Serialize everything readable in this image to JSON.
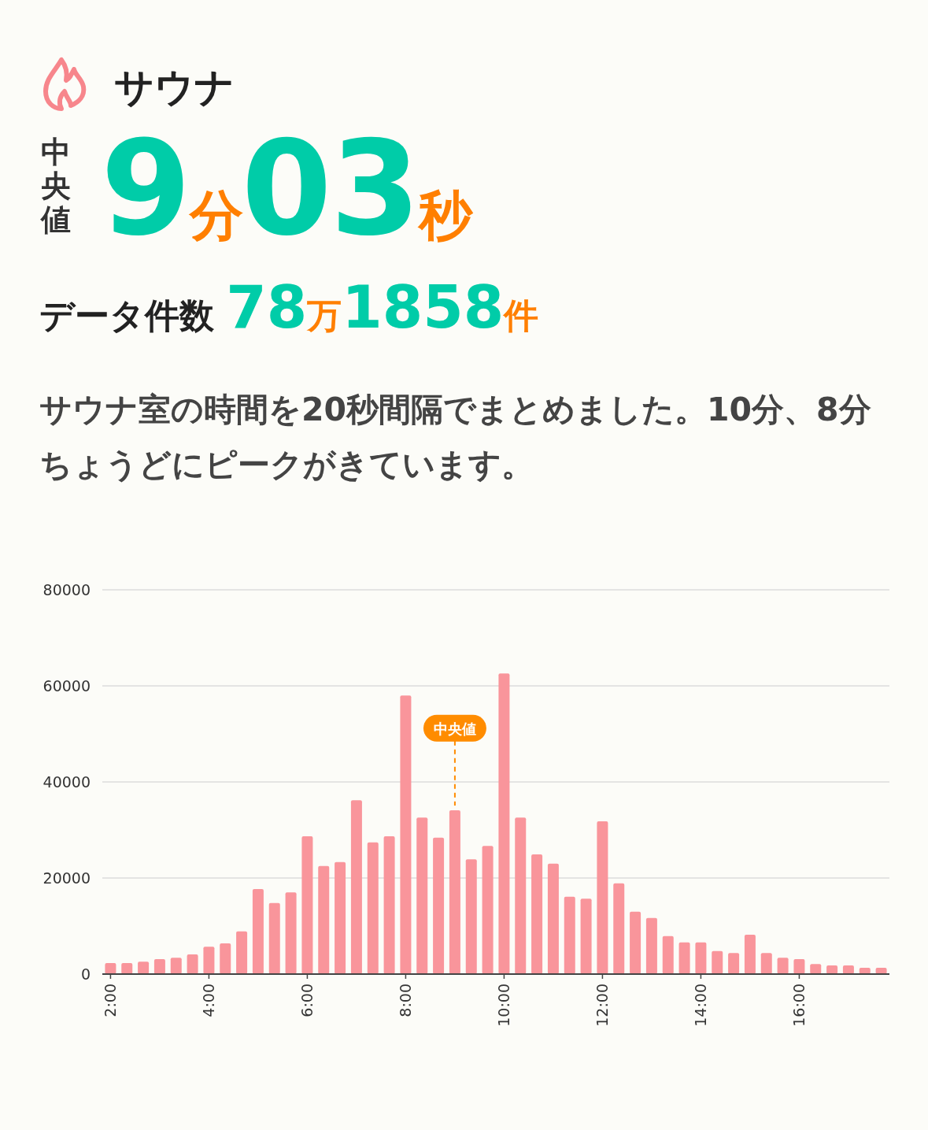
{
  "chart_data": {
    "type": "bar",
    "title": "サウナ",
    "annotations": [
      "中央値",
      "9分03秒",
      "データ件数 78万1858件",
      "サウナ室の時間を20秒間隔でまとめました。10分、8分ちょうどにピークがきています。",
      "中央値"
    ],
    "categories": [
      "2:00",
      null,
      null,
      null,
      null,
      null,
      "4:00",
      null,
      null,
      null,
      null,
      null,
      "6:00",
      null,
      null,
      null,
      null,
      null,
      "8:00",
      null,
      null,
      null,
      null,
      null,
      "10:00",
      null,
      null,
      null,
      null,
      null,
      "12:00",
      null,
      null,
      null,
      null,
      null,
      "14:00",
      null,
      null,
      null,
      null,
      null,
      "16:00",
      null,
      null,
      null,
      null,
      null
    ],
    "values": [
      2300,
      2300,
      2600,
      3100,
      3400,
      4100,
      5700,
      6400,
      8900,
      17700,
      14800,
      17000,
      28700,
      22500,
      23300,
      36200,
      27400,
      28700,
      58000,
      32600,
      28400,
      34100,
      23900,
      26700,
      62600,
      32600,
      24900,
      23000,
      16100,
      15700,
      31800,
      18900,
      13000,
      11700,
      7900,
      6600,
      6600,
      4800,
      4400,
      8200,
      4400,
      3400,
      3100,
      2100,
      1800,
      1800,
      1300,
      1300
    ],
    "color": "#f9959b",
    "ylim": [
      0,
      80000
    ],
    "yticks": [
      0,
      20000,
      40000,
      60000,
      80000
    ],
    "grid": "y"
  }
}
